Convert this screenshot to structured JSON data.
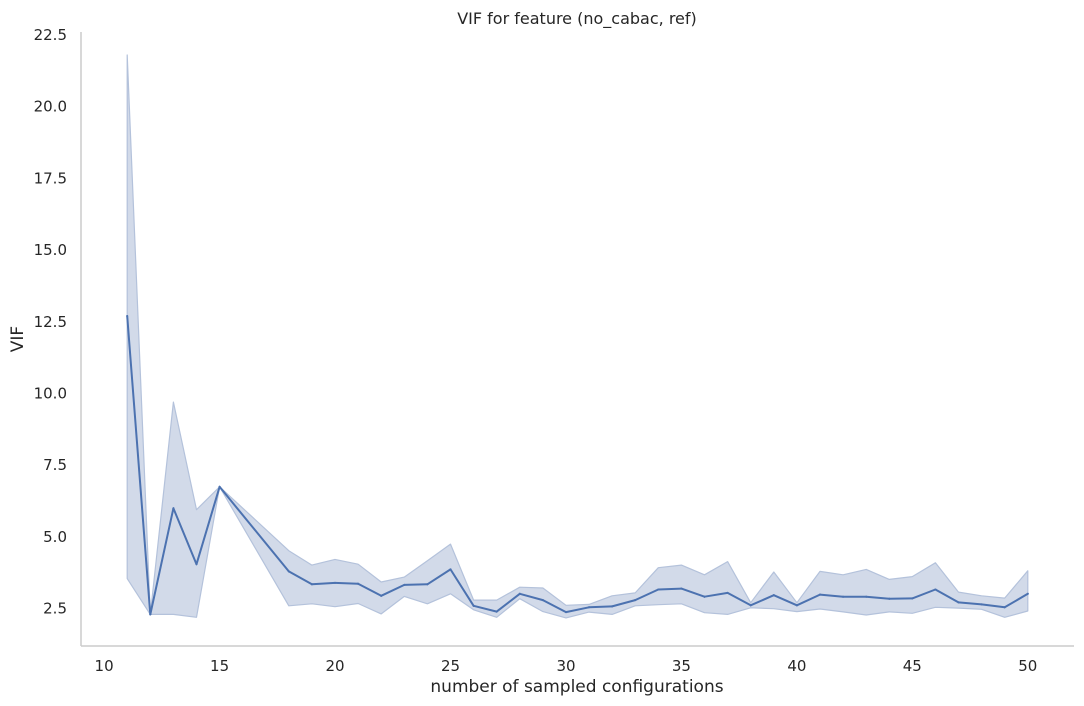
{
  "chart_data": {
    "type": "line",
    "title": "VIF for feature (no_cabac, ref)",
    "xlabel": "number of sampled configurations",
    "ylabel": "VIF",
    "xlim": [
      9.0,
      52.0
    ],
    "ylim": [
      1.2,
      22.6
    ],
    "xticks": [
      10,
      15,
      20,
      25,
      30,
      35,
      40,
      45,
      50
    ],
    "yticks": [
      2.5,
      5.0,
      7.5,
      10.0,
      12.5,
      15.0,
      17.5,
      20.0,
      22.5
    ],
    "xtick_labels": [
      "10",
      "15",
      "20",
      "25",
      "30",
      "35",
      "40",
      "45",
      "50"
    ],
    "ytick_labels": [
      "2.5",
      "5.0",
      "7.5",
      "10.0",
      "12.5",
      "15.0",
      "17.5",
      "20.0",
      "22.5"
    ],
    "grid": false,
    "colors": {
      "line": "#4c72b0",
      "band": "#b4c2db"
    },
    "series": [
      {
        "x": [
          11,
          12,
          13,
          14,
          15,
          18,
          19,
          20,
          21,
          22,
          23,
          24,
          25,
          26,
          27,
          28,
          29,
          30,
          31,
          32,
          33,
          34,
          35,
          36,
          37,
          38,
          39,
          40,
          41,
          42,
          43,
          44,
          45,
          46,
          47,
          48,
          49,
          50
        ],
        "y": [
          12.7,
          2.3,
          6.0,
          4.05,
          6.75,
          3.8,
          3.35,
          3.4,
          3.37,
          2.95,
          3.33,
          3.35,
          3.87,
          2.6,
          2.4,
          3.02,
          2.8,
          2.38,
          2.55,
          2.58,
          2.8,
          3.17,
          3.2,
          2.92,
          3.05,
          2.62,
          2.97,
          2.62,
          2.99,
          2.92,
          2.92,
          2.85,
          2.86,
          3.17,
          2.72,
          2.65,
          2.55,
          3.02
        ],
        "lower": [
          3.55,
          2.3,
          2.3,
          2.2,
          6.75,
          2.6,
          2.67,
          2.57,
          2.68,
          2.32,
          2.93,
          2.67,
          3.02,
          2.46,
          2.2,
          2.85,
          2.4,
          2.18,
          2.38,
          2.3,
          2.6,
          2.64,
          2.67,
          2.36,
          2.3,
          2.53,
          2.5,
          2.4,
          2.49,
          2.39,
          2.28,
          2.39,
          2.34,
          2.55,
          2.52,
          2.48,
          2.2,
          2.42
        ],
        "upper": [
          21.8,
          2.3,
          9.7,
          5.95,
          6.75,
          4.52,
          4.02,
          4.22,
          4.05,
          3.43,
          3.6,
          4.17,
          4.75,
          2.8,
          2.8,
          3.25,
          3.22,
          2.62,
          2.65,
          2.95,
          3.05,
          3.93,
          4.02,
          3.68,
          4.14,
          2.71,
          3.78,
          2.71,
          3.8,
          3.68,
          3.87,
          3.52,
          3.62,
          4.1,
          3.08,
          2.95,
          2.87,
          3.82
        ]
      }
    ]
  }
}
